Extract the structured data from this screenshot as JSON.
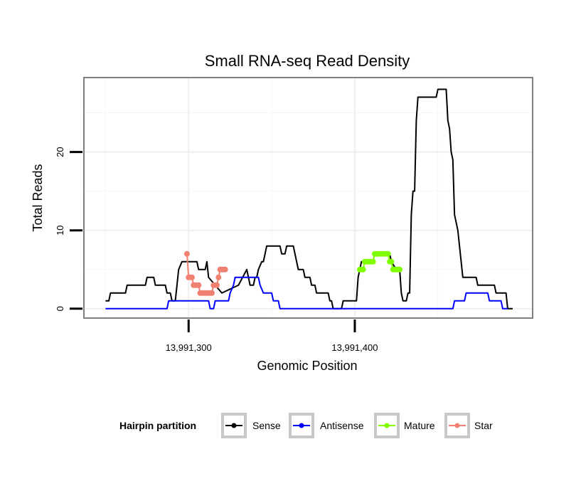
{
  "chart_data": {
    "type": "line",
    "title": "Small RNA-seq Read Density",
    "xlabel": "Genomic Position",
    "ylabel": "Total Reads",
    "xlim": [
      13991237,
      13991507
    ],
    "ylim": [
      -1.2,
      29.5
    ],
    "x_ticks": [
      13991300,
      13991400
    ],
    "x_tick_labels": [
      "13,991,300",
      "13,991,400"
    ],
    "y_ticks": [
      0,
      10,
      20
    ],
    "y_tick_labels": [
      "0",
      "10",
      "20"
    ],
    "legend": {
      "title": "Hairpin partition",
      "position": "bottom",
      "entries": [
        {
          "key": "sense",
          "label": "Sense",
          "color": "#000000"
        },
        {
          "key": "antisense",
          "label": "Antisense",
          "color": "#0000ff"
        },
        {
          "key": "mature",
          "label": "Mature",
          "color": "#80ff00"
        },
        {
          "key": "star",
          "label": "Star",
          "color": "#f08070"
        }
      ]
    },
    "series": [
      {
        "name": "Sense",
        "color": "#000000",
        "markers": false,
        "points": [
          [
            13991250,
            1
          ],
          [
            13991252,
            1
          ],
          [
            13991253,
            2
          ],
          [
            13991262,
            2
          ],
          [
            13991263,
            3
          ],
          [
            13991274,
            3
          ],
          [
            13991275,
            4
          ],
          [
            13991279,
            4
          ],
          [
            13991280,
            3
          ],
          [
            13991286,
            3
          ],
          [
            13991287,
            2
          ],
          [
            13991289,
            2
          ],
          [
            13991290,
            1
          ],
          [
            13991292,
            1
          ],
          [
            13991293,
            3
          ],
          [
            13991294,
            5
          ],
          [
            13991296,
            6
          ],
          [
            13991305,
            6
          ],
          [
            13991306,
            5
          ],
          [
            13991310,
            5
          ],
          [
            13991311,
            6
          ],
          [
            13991312,
            4
          ],
          [
            13991316,
            3
          ],
          [
            13991320,
            2
          ],
          [
            13991330,
            3
          ],
          [
            13991335,
            5
          ],
          [
            13991337,
            3
          ],
          [
            13991339,
            3
          ],
          [
            13991340,
            4
          ],
          [
            13991341,
            4
          ],
          [
            13991342,
            5
          ],
          [
            13991344,
            6
          ],
          [
            13991345,
            6
          ],
          [
            13991347,
            8
          ],
          [
            13991355,
            8
          ],
          [
            13991356,
            7
          ],
          [
            13991358,
            7
          ],
          [
            13991359,
            8
          ],
          [
            13991363,
            8
          ],
          [
            13991364,
            7
          ],
          [
            13991366,
            5
          ],
          [
            13991369,
            5
          ],
          [
            13991370,
            4
          ],
          [
            13991373,
            4
          ],
          [
            13991374,
            3
          ],
          [
            13991376,
            3
          ],
          [
            13991377,
            2
          ],
          [
            13991384,
            2
          ],
          [
            13991385,
            1
          ],
          [
            13991386,
            1
          ],
          [
            13991387,
            0
          ],
          [
            13991392,
            0
          ],
          [
            13991393,
            1
          ],
          [
            13991401,
            1
          ],
          [
            13991402,
            4
          ],
          [
            13991404,
            6
          ],
          [
            13991411,
            6
          ],
          [
            13991412,
            7
          ],
          [
            13991421,
            7
          ],
          [
            13991422,
            6
          ],
          [
            13991425,
            5
          ],
          [
            13991427,
            5
          ],
          [
            13991428,
            2
          ],
          [
            13991429,
            1
          ],
          [
            13991431,
            1
          ],
          [
            13991432,
            2
          ],
          [
            13991433,
            2
          ],
          [
            13991434,
            12
          ],
          [
            13991435,
            15
          ],
          [
            13991436,
            15
          ],
          [
            13991437,
            24
          ],
          [
            13991438,
            27
          ],
          [
            13991449,
            27
          ],
          [
            13991450,
            28
          ],
          [
            13991455,
            28
          ],
          [
            13991456,
            24
          ],
          [
            13991457,
            23
          ],
          [
            13991458,
            20
          ],
          [
            13991459,
            19
          ],
          [
            13991460,
            12
          ],
          [
            13991461,
            11
          ],
          [
            13991462,
            10
          ],
          [
            13991463,
            8
          ],
          [
            13991464,
            6
          ],
          [
            13991465,
            4
          ],
          [
            13991473,
            4
          ],
          [
            13991474,
            3
          ],
          [
            13991484,
            3
          ],
          [
            13991485,
            2
          ],
          [
            13991491,
            2
          ],
          [
            13991492,
            0
          ],
          [
            13991495,
            0
          ]
        ]
      },
      {
        "name": "Antisense",
        "color": "#0000ff",
        "markers": false,
        "points": [
          [
            13991250,
            0
          ],
          [
            13991287,
            0
          ],
          [
            13991288,
            1
          ],
          [
            13991312,
            1
          ],
          [
            13991313,
            0
          ],
          [
            13991315,
            0
          ],
          [
            13991316,
            1
          ],
          [
            13991324,
            1
          ],
          [
            13991325,
            2
          ],
          [
            13991327,
            3
          ],
          [
            13991328,
            4
          ],
          [
            13991342,
            4
          ],
          [
            13991343,
            3
          ],
          [
            13991345,
            2
          ],
          [
            13991350,
            2
          ],
          [
            13991351,
            1
          ],
          [
            13991354,
            1
          ],
          [
            13991355,
            0
          ],
          [
            13991459,
            0
          ],
          [
            13991460,
            1
          ],
          [
            13991466,
            1
          ],
          [
            13991467,
            2
          ],
          [
            13991480,
            2
          ],
          [
            13991481,
            1
          ],
          [
            13991488,
            1
          ],
          [
            13991489,
            0
          ],
          [
            13991492,
            0
          ]
        ]
      },
      {
        "name": "Mature",
        "color": "#80ff00",
        "markers": true,
        "points": [
          [
            13991403,
            5
          ],
          [
            13991404,
            5
          ],
          [
            13991405,
            5
          ],
          [
            13991406,
            6
          ],
          [
            13991407,
            6
          ],
          [
            13991408,
            6
          ],
          [
            13991409,
            6
          ],
          [
            13991410,
            6
          ],
          [
            13991411,
            6
          ],
          [
            13991412,
            7
          ],
          [
            13991413,
            7
          ],
          [
            13991414,
            7
          ],
          [
            13991415,
            7
          ],
          [
            13991416,
            7
          ],
          [
            13991417,
            7
          ],
          [
            13991418,
            7
          ],
          [
            13991419,
            7
          ],
          [
            13991420,
            7
          ],
          [
            13991421,
            6
          ],
          [
            13991422,
            6
          ],
          [
            13991423,
            5
          ],
          [
            13991424,
            5
          ],
          [
            13991425,
            5
          ],
          [
            13991426,
            5
          ],
          [
            13991427,
            5
          ]
        ]
      },
      {
        "name": "Star",
        "color": "#f08070",
        "markers": true,
        "points": [
          [
            13991299,
            7
          ],
          [
            13991300,
            4
          ],
          [
            13991301,
            4
          ],
          [
            13991302,
            4
          ],
          [
            13991303,
            3
          ],
          [
            13991304,
            3
          ],
          [
            13991305,
            3
          ],
          [
            13991306,
            3
          ],
          [
            13991307,
            2
          ],
          [
            13991308,
            2
          ],
          [
            13991309,
            2
          ],
          [
            13991310,
            2
          ],
          [
            13991311,
            2
          ],
          [
            13991312,
            2
          ],
          [
            13991313,
            2
          ],
          [
            13991314,
            2
          ],
          [
            13991315,
            3
          ],
          [
            13991316,
            3
          ],
          [
            13991317,
            3
          ],
          [
            13991318,
            4
          ],
          [
            13991319,
            5
          ],
          [
            13991320,
            5
          ],
          [
            13991321,
            5
          ],
          [
            13991322,
            5
          ]
        ]
      }
    ]
  }
}
